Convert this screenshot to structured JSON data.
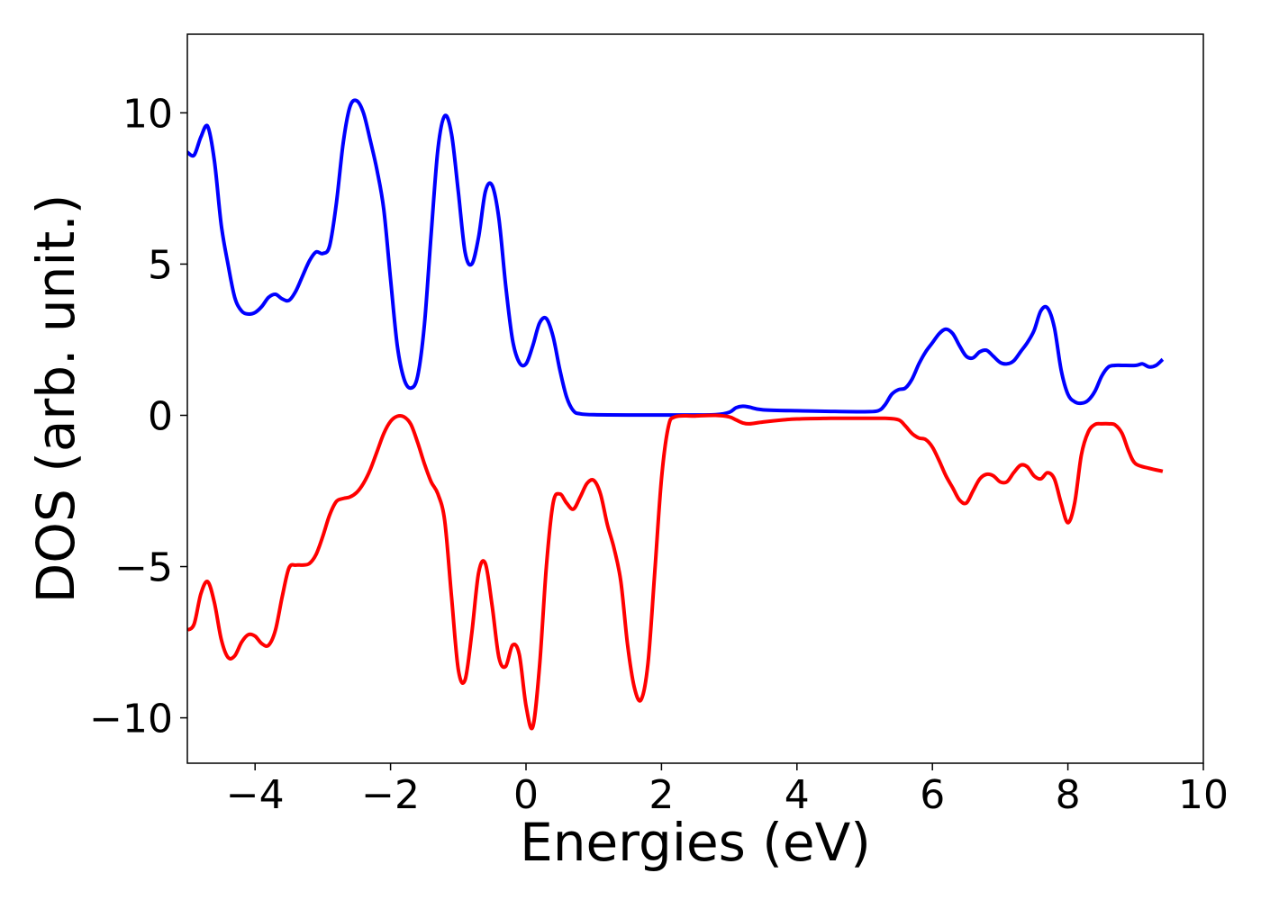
{
  "chart_data": {
    "type": "line",
    "title": "",
    "xlabel": "Energies (eV)",
    "ylabel": "DOS (arb. unit.)",
    "xlim": [
      -5,
      10
    ],
    "ylim": [
      -11.5,
      12.6
    ],
    "grid": false,
    "legend": "none",
    "x_ticks": [
      {
        "value": -4,
        "label": "−4"
      },
      {
        "value": -2,
        "label": "−2"
      },
      {
        "value": 0,
        "label": "0"
      },
      {
        "value": 2,
        "label": "2"
      },
      {
        "value": 4,
        "label": "4"
      },
      {
        "value": 6,
        "label": "6"
      },
      {
        "value": 8,
        "label": "8"
      },
      {
        "value": 10,
        "label": "10"
      }
    ],
    "y_ticks": [
      {
        "value": -10,
        "label": "−10"
      },
      {
        "value": -5,
        "label": "−5"
      },
      {
        "value": 0,
        "label": "0"
      },
      {
        "value": 5,
        "label": "5"
      },
      {
        "value": 10,
        "label": "10"
      }
    ],
    "series": [
      {
        "color": "#0000ff",
        "points": [
          [
            -5.0,
            8.7
          ],
          [
            -4.9,
            8.6
          ],
          [
            -4.8,
            9.2
          ],
          [
            -4.7,
            9.55
          ],
          [
            -4.6,
            8.4
          ],
          [
            -4.5,
            6.3
          ],
          [
            -4.4,
            5.0
          ],
          [
            -4.3,
            3.9
          ],
          [
            -4.2,
            3.45
          ],
          [
            -4.1,
            3.35
          ],
          [
            -4.0,
            3.4
          ],
          [
            -3.9,
            3.6
          ],
          [
            -3.8,
            3.9
          ],
          [
            -3.7,
            4.0
          ],
          [
            -3.6,
            3.85
          ],
          [
            -3.5,
            3.8
          ],
          [
            -3.4,
            4.1
          ],
          [
            -3.3,
            4.6
          ],
          [
            -3.2,
            5.1
          ],
          [
            -3.1,
            5.4
          ],
          [
            -3.0,
            5.35
          ],
          [
            -2.9,
            5.6
          ],
          [
            -2.8,
            7.0
          ],
          [
            -2.7,
            9.0
          ],
          [
            -2.6,
            10.2
          ],
          [
            -2.5,
            10.4
          ],
          [
            -2.4,
            10.0
          ],
          [
            -2.3,
            9.1
          ],
          [
            -2.2,
            8.1
          ],
          [
            -2.1,
            6.8
          ],
          [
            -2.0,
            4.5
          ],
          [
            -1.9,
            2.3
          ],
          [
            -1.8,
            1.2
          ],
          [
            -1.7,
            0.9
          ],
          [
            -1.6,
            1.3
          ],
          [
            -1.5,
            3.0
          ],
          [
            -1.4,
            6.0
          ],
          [
            -1.3,
            8.8
          ],
          [
            -1.2,
            9.9
          ],
          [
            -1.1,
            9.3
          ],
          [
            -1.0,
            7.4
          ],
          [
            -0.9,
            5.4
          ],
          [
            -0.8,
            5.0
          ],
          [
            -0.7,
            5.9
          ],
          [
            -0.6,
            7.4
          ],
          [
            -0.5,
            7.6
          ],
          [
            -0.4,
            6.5
          ],
          [
            -0.3,
            4.3
          ],
          [
            -0.2,
            2.5
          ],
          [
            -0.1,
            1.75
          ],
          [
            0.0,
            1.7
          ],
          [
            0.1,
            2.3
          ],
          [
            0.2,
            3.05
          ],
          [
            0.3,
            3.2
          ],
          [
            0.4,
            2.6
          ],
          [
            0.5,
            1.5
          ],
          [
            0.6,
            0.6
          ],
          [
            0.7,
            0.15
          ],
          [
            0.8,
            0.05
          ],
          [
            1.0,
            0.02
          ],
          [
            1.5,
            0.01
          ],
          [
            2.0,
            0.01
          ],
          [
            2.5,
            0.01
          ],
          [
            2.8,
            0.02
          ],
          [
            3.0,
            0.1
          ],
          [
            3.1,
            0.25
          ],
          [
            3.2,
            0.3
          ],
          [
            3.3,
            0.27
          ],
          [
            3.5,
            0.18
          ],
          [
            4.0,
            0.15
          ],
          [
            4.5,
            0.13
          ],
          [
            5.0,
            0.12
          ],
          [
            5.2,
            0.15
          ],
          [
            5.3,
            0.35
          ],
          [
            5.4,
            0.7
          ],
          [
            5.5,
            0.85
          ],
          [
            5.6,
            0.9
          ],
          [
            5.7,
            1.2
          ],
          [
            5.8,
            1.7
          ],
          [
            5.9,
            2.1
          ],
          [
            6.0,
            2.4
          ],
          [
            6.1,
            2.7
          ],
          [
            6.2,
            2.85
          ],
          [
            6.3,
            2.7
          ],
          [
            6.4,
            2.3
          ],
          [
            6.5,
            1.95
          ],
          [
            6.6,
            1.9
          ],
          [
            6.7,
            2.1
          ],
          [
            6.8,
            2.15
          ],
          [
            6.9,
            1.95
          ],
          [
            7.0,
            1.75
          ],
          [
            7.1,
            1.7
          ],
          [
            7.2,
            1.8
          ],
          [
            7.3,
            2.1
          ],
          [
            7.4,
            2.4
          ],
          [
            7.5,
            2.8
          ],
          [
            7.6,
            3.45
          ],
          [
            7.7,
            3.55
          ],
          [
            7.8,
            2.9
          ],
          [
            7.9,
            1.5
          ],
          [
            8.0,
            0.7
          ],
          [
            8.1,
            0.45
          ],
          [
            8.2,
            0.4
          ],
          [
            8.3,
            0.5
          ],
          [
            8.4,
            0.8
          ],
          [
            8.5,
            1.3
          ],
          [
            8.6,
            1.6
          ],
          [
            8.7,
            1.65
          ],
          [
            8.8,
            1.65
          ],
          [
            9.0,
            1.65
          ],
          [
            9.1,
            1.7
          ],
          [
            9.2,
            1.6
          ],
          [
            9.3,
            1.65
          ],
          [
            9.4,
            1.85
          ]
        ]
      },
      {
        "color": "#ff0000",
        "points": [
          [
            -5.0,
            -7.1
          ],
          [
            -4.9,
            -6.9
          ],
          [
            -4.8,
            -5.9
          ],
          [
            -4.7,
            -5.5
          ],
          [
            -4.6,
            -6.2
          ],
          [
            -4.5,
            -7.4
          ],
          [
            -4.4,
            -8.0
          ],
          [
            -4.3,
            -7.95
          ],
          [
            -4.2,
            -7.5
          ],
          [
            -4.1,
            -7.25
          ],
          [
            -4.0,
            -7.3
          ],
          [
            -3.9,
            -7.55
          ],
          [
            -3.8,
            -7.6
          ],
          [
            -3.7,
            -7.1
          ],
          [
            -3.6,
            -6.0
          ],
          [
            -3.5,
            -5.05
          ],
          [
            -3.4,
            -4.95
          ],
          [
            -3.3,
            -4.95
          ],
          [
            -3.2,
            -4.9
          ],
          [
            -3.1,
            -4.6
          ],
          [
            -3.0,
            -4.0
          ],
          [
            -2.9,
            -3.3
          ],
          [
            -2.8,
            -2.85
          ],
          [
            -2.7,
            -2.75
          ],
          [
            -2.6,
            -2.7
          ],
          [
            -2.5,
            -2.55
          ],
          [
            -2.4,
            -2.25
          ],
          [
            -2.3,
            -1.8
          ],
          [
            -2.2,
            -1.2
          ],
          [
            -2.1,
            -0.6
          ],
          [
            -2.0,
            -0.2
          ],
          [
            -1.9,
            -0.03
          ],
          [
            -1.8,
            -0.05
          ],
          [
            -1.7,
            -0.3
          ],
          [
            -1.6,
            -0.9
          ],
          [
            -1.5,
            -1.6
          ],
          [
            -1.4,
            -2.2
          ],
          [
            -1.3,
            -2.6
          ],
          [
            -1.2,
            -3.5
          ],
          [
            -1.1,
            -6.0
          ],
          [
            -1.0,
            -8.4
          ],
          [
            -0.9,
            -8.75
          ],
          [
            -0.8,
            -7.2
          ],
          [
            -0.7,
            -5.2
          ],
          [
            -0.6,
            -4.9
          ],
          [
            -0.5,
            -6.3
          ],
          [
            -0.4,
            -8.0
          ],
          [
            -0.3,
            -8.3
          ],
          [
            -0.2,
            -7.6
          ],
          [
            -0.1,
            -7.9
          ],
          [
            0.0,
            -9.6
          ],
          [
            0.1,
            -10.3
          ],
          [
            0.2,
            -8.3
          ],
          [
            0.3,
            -5.0
          ],
          [
            0.4,
            -2.9
          ],
          [
            0.5,
            -2.6
          ],
          [
            0.6,
            -2.9
          ],
          [
            0.7,
            -3.1
          ],
          [
            0.8,
            -2.7
          ],
          [
            0.9,
            -2.25
          ],
          [
            1.0,
            -2.15
          ],
          [
            1.1,
            -2.6
          ],
          [
            1.2,
            -3.6
          ],
          [
            1.3,
            -4.4
          ],
          [
            1.4,
            -5.5
          ],
          [
            1.5,
            -7.6
          ],
          [
            1.6,
            -9.0
          ],
          [
            1.7,
            -9.4
          ],
          [
            1.8,
            -8.2
          ],
          [
            1.9,
            -5.2
          ],
          [
            2.0,
            -2.1
          ],
          [
            2.1,
            -0.4
          ],
          [
            2.2,
            -0.05
          ],
          [
            2.5,
            -0.02
          ],
          [
            2.8,
            0.0
          ],
          [
            3.0,
            -0.05
          ],
          [
            3.1,
            -0.15
          ],
          [
            3.2,
            -0.25
          ],
          [
            3.3,
            -0.28
          ],
          [
            3.5,
            -0.22
          ],
          [
            3.8,
            -0.15
          ],
          [
            4.0,
            -0.12
          ],
          [
            4.5,
            -0.1
          ],
          [
            5.0,
            -0.1
          ],
          [
            5.3,
            -0.1
          ],
          [
            5.5,
            -0.15
          ],
          [
            5.6,
            -0.35
          ],
          [
            5.7,
            -0.6
          ],
          [
            5.8,
            -0.75
          ],
          [
            5.9,
            -0.8
          ],
          [
            6.0,
            -1.05
          ],
          [
            6.1,
            -1.5
          ],
          [
            6.2,
            -2.0
          ],
          [
            6.3,
            -2.4
          ],
          [
            6.4,
            -2.8
          ],
          [
            6.5,
            -2.9
          ],
          [
            6.6,
            -2.5
          ],
          [
            6.7,
            -2.1
          ],
          [
            6.8,
            -1.95
          ],
          [
            6.9,
            -2.0
          ],
          [
            7.0,
            -2.2
          ],
          [
            7.1,
            -2.2
          ],
          [
            7.2,
            -1.9
          ],
          [
            7.3,
            -1.65
          ],
          [
            7.4,
            -1.7
          ],
          [
            7.5,
            -2.0
          ],
          [
            7.6,
            -2.1
          ],
          [
            7.7,
            -1.9
          ],
          [
            7.8,
            -2.1
          ],
          [
            7.9,
            -2.9
          ],
          [
            8.0,
            -3.55
          ],
          [
            8.1,
            -2.9
          ],
          [
            8.2,
            -1.3
          ],
          [
            8.3,
            -0.55
          ],
          [
            8.4,
            -0.3
          ],
          [
            8.5,
            -0.28
          ],
          [
            8.6,
            -0.28
          ],
          [
            8.7,
            -0.32
          ],
          [
            8.8,
            -0.6
          ],
          [
            8.9,
            -1.2
          ],
          [
            9.0,
            -1.6
          ],
          [
            9.2,
            -1.75
          ],
          [
            9.4,
            -1.85
          ]
        ]
      }
    ]
  }
}
